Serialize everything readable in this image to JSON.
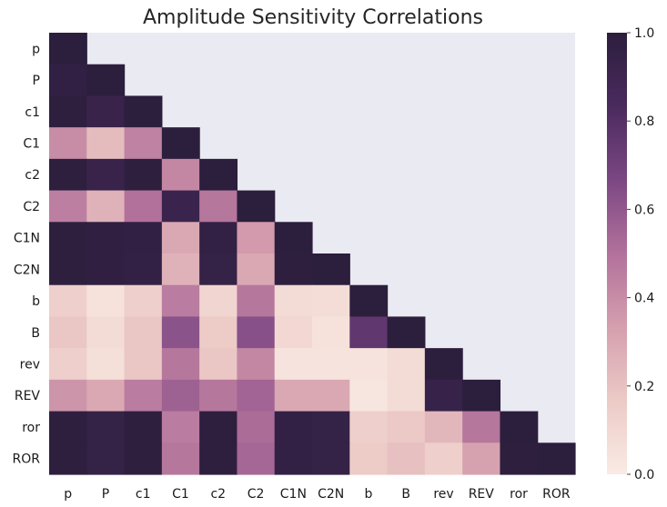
{
  "chart_data": {
    "type": "heatmap",
    "title": "Amplitude Sensitivity Correlations",
    "labels": [
      "p",
      "P",
      "c1",
      "C1",
      "c2",
      "C2",
      "C1N",
      "C2N",
      "b",
      "B",
      "rev",
      "REV",
      "ror",
      "ROR"
    ],
    "masked": "upper-triangle",
    "matrix": [
      [
        1.0
      ],
      [
        0.97,
        1.0
      ],
      [
        0.99,
        0.93,
        1.0
      ],
      [
        0.4,
        0.22,
        0.44,
        1.0
      ],
      [
        0.99,
        0.93,
        0.99,
        0.42,
        1.0
      ],
      [
        0.45,
        0.26,
        0.5,
        0.92,
        0.48,
        1.0
      ],
      [
        0.99,
        0.98,
        0.97,
        0.3,
        0.96,
        0.35,
        1.0
      ],
      [
        0.99,
        0.98,
        0.96,
        0.26,
        0.95,
        0.3,
        0.99,
        1.0
      ],
      [
        0.14,
        0.05,
        0.14,
        0.46,
        0.11,
        0.48,
        0.08,
        0.07,
        1.0
      ],
      [
        0.18,
        0.08,
        0.18,
        0.62,
        0.16,
        0.63,
        0.1,
        0.05,
        0.76,
        1.0
      ],
      [
        0.14,
        0.06,
        0.18,
        0.48,
        0.18,
        0.42,
        0.04,
        0.04,
        0.04,
        0.08,
        1.0
      ],
      [
        0.37,
        0.3,
        0.46,
        0.56,
        0.48,
        0.55,
        0.3,
        0.3,
        0.03,
        0.08,
        0.94,
        1.0
      ],
      [
        0.99,
        0.95,
        0.99,
        0.46,
        0.99,
        0.52,
        0.96,
        0.95,
        0.14,
        0.17,
        0.24,
        0.48,
        1.0
      ],
      [
        0.99,
        0.95,
        0.99,
        0.48,
        0.99,
        0.54,
        0.96,
        0.95,
        0.16,
        0.2,
        0.14,
        0.32,
        0.99,
        1.0
      ]
    ],
    "vmin": 0.0,
    "vmax": 1.0,
    "colorbar": {
      "ticks": [
        0.0,
        0.2,
        0.4,
        0.6,
        0.8,
        1.0
      ],
      "tick_labels": [
        "0.0",
        "0.2",
        "0.4",
        "0.6",
        "0.8",
        "1.0"
      ]
    },
    "colors": {
      "background": "#eaeaf2",
      "scale": [
        "#faebe4",
        "#eccac6",
        "#d59fae",
        "#b2719b",
        "#7b4783",
        "#4a2a5e",
        "#2c1e3d"
      ]
    }
  }
}
